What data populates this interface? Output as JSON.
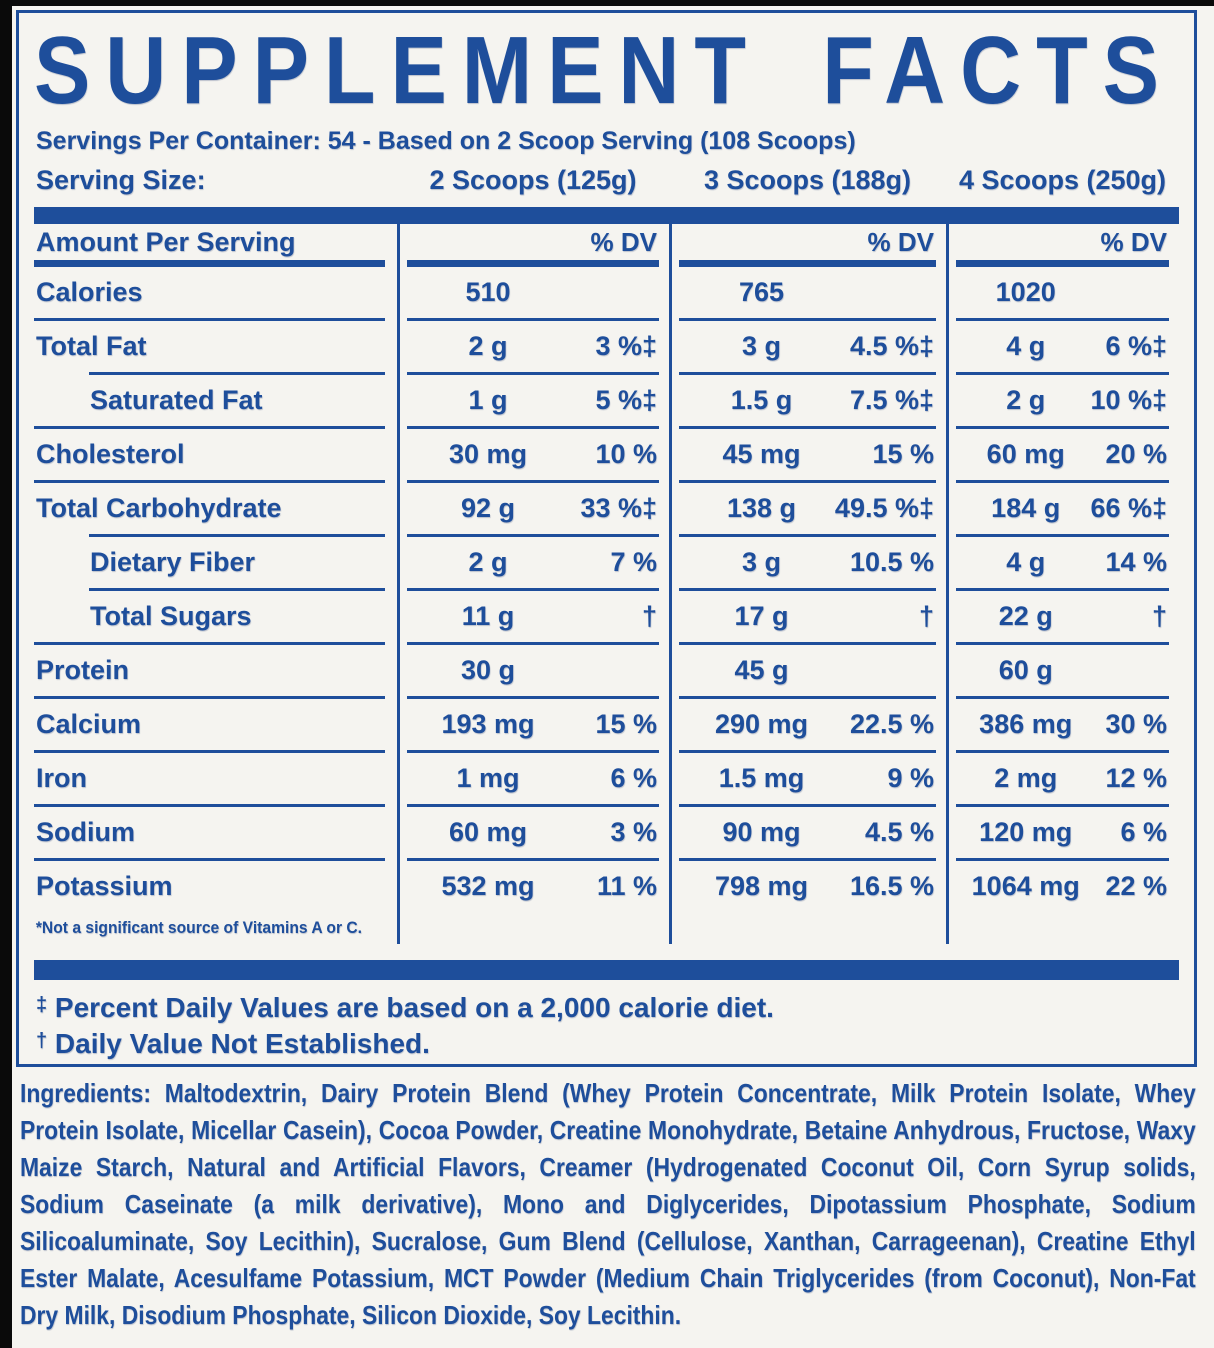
{
  "header": {
    "title": "SUPPLEMENT FACTS",
    "servings_line": "Servings Per Container: 54 - Based on 2 Scoop Serving (108 Scoops)",
    "serving_size_label": "Serving Size:",
    "serving_sizes": [
      "2 Scoops (125g)",
      "3 Scoops (188g)",
      "4 Scoops (250g)"
    ]
  },
  "table": {
    "header": {
      "label": "Amount Per Serving",
      "dv": "% DV"
    },
    "rows": [
      {
        "label": "Calories",
        "cols": [
          [
            "510",
            ""
          ],
          [
            "765",
            ""
          ],
          [
            "1020",
            ""
          ]
        ]
      },
      {
        "label": "Total Fat",
        "cols": [
          [
            "2 g",
            "3 %‡"
          ],
          [
            "3 g",
            "4.5 %‡"
          ],
          [
            "4 g",
            "6 %‡"
          ]
        ]
      },
      {
        "label": "Saturated Fat",
        "cols": [
          [
            "1 g",
            "5 %‡"
          ],
          [
            "1.5 g",
            "7.5 %‡"
          ],
          [
            "2 g",
            "10 %‡"
          ]
        ]
      },
      {
        "label": "Cholesterol",
        "cols": [
          [
            "30 mg",
            "10 %"
          ],
          [
            "45 mg",
            "15 %"
          ],
          [
            "60 mg",
            "20 %"
          ]
        ]
      },
      {
        "label": "Total Carbohydrate",
        "cols": [
          [
            "92 g",
            "33 %‡"
          ],
          [
            "138 g",
            "49.5 %‡"
          ],
          [
            "184 g",
            "66 %‡"
          ]
        ]
      },
      {
        "label": "Dietary Fiber",
        "cols": [
          [
            "2 g",
            "7 %"
          ],
          [
            "3 g",
            "10.5 %"
          ],
          [
            "4 g",
            "14 %"
          ]
        ]
      },
      {
        "label": "Total Sugars",
        "cols": [
          [
            "11 g",
            "†"
          ],
          [
            "17 g",
            "†"
          ],
          [
            "22 g",
            "†"
          ]
        ]
      },
      {
        "label": "Protein",
        "cols": [
          [
            "30 g",
            ""
          ],
          [
            "45 g",
            ""
          ],
          [
            "60 g",
            ""
          ]
        ]
      },
      {
        "label": "Calcium",
        "cols": [
          [
            "193 mg",
            "15 %"
          ],
          [
            "290 mg",
            "22.5 %"
          ],
          [
            "386 mg",
            "30 %"
          ]
        ]
      },
      {
        "label": "Iron",
        "cols": [
          [
            "1 mg",
            "6 %"
          ],
          [
            "1.5 mg",
            "9 %"
          ],
          [
            "2 mg",
            "12 %"
          ]
        ]
      },
      {
        "label": "Sodium",
        "cols": [
          [
            "60 mg",
            "3 %"
          ],
          [
            "90 mg",
            "4.5 %"
          ],
          [
            "120 mg",
            "6 %"
          ]
        ]
      },
      {
        "label": "Potassium",
        "cols": [
          [
            "532 mg",
            "11 %"
          ],
          [
            "798 mg",
            "16.5 %"
          ],
          [
            "1064 mg",
            "22 %"
          ]
        ]
      }
    ],
    "footnote": "*Not a significant source of Vitamins A or C."
  },
  "legend": {
    "ddagger": {
      "symbol": "‡",
      "text": "Percent Daily Values are based on a 2,000 calorie diet."
    },
    "dagger": {
      "symbol": "†",
      "text": "Daily Value Not Established."
    }
  },
  "ingredients": "Ingredients: Maltodextrin, Dairy Protein Blend (Whey Protein Concentrate, Milk Protein Isolate, Whey Protein Isolate, Micellar Casein), Cocoa Powder, Creatine Monohydrate, Betaine Anhydrous, Fructose, Waxy Maize Starch, Natural and Artificial Flavors, Creamer (Hydrogenated Coconut Oil, Corn Syrup solids, Sodium Caseinate (a milk derivative), Mono and Diglycerides, Dipotassium Phosphate, Sodium Silicoaluminate, Soy Lecithin), Sucralose, Gum Blend (Cellulose, Xanthan, Carrageenan), Creatine Ethyl Ester Malate, Acesulfame Potassium, MCT Powder (Medium Chain Triglycerides (from Coconut), Non-Fat Dry Milk, Disodium Phosphate, Silicon Dioxide, Soy Lecithin.",
  "colors": {
    "blue": "#1e4e9b",
    "background": "#f5f4f0",
    "edge": "#0a0a0a"
  }
}
